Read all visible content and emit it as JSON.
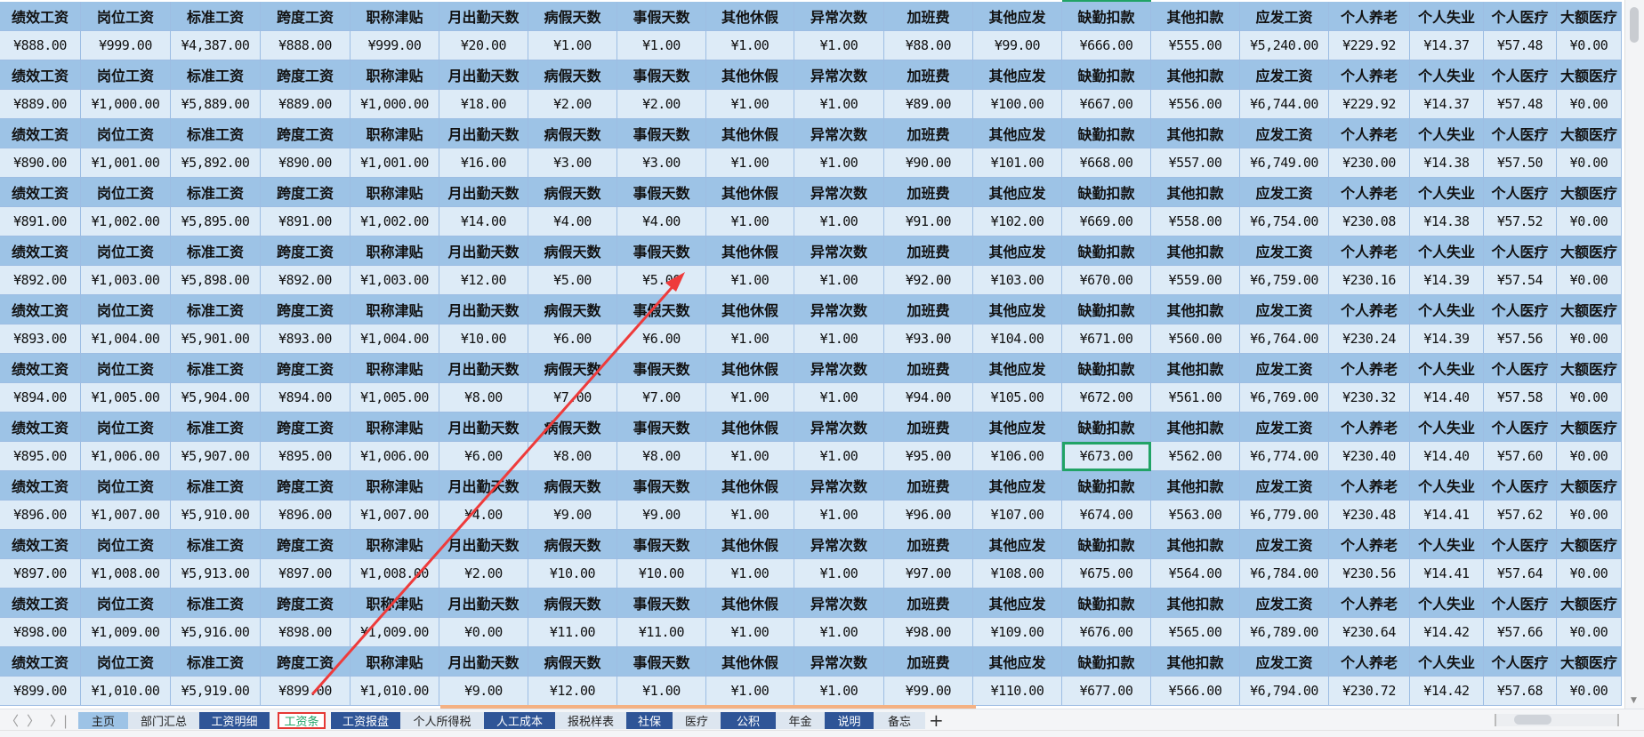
{
  "headers": [
    "绩效工资",
    "岗位工资",
    "标准工资",
    "跨度工资",
    "职称津贴",
    "月出勤天数",
    "病假天数",
    "事假天数",
    "其他休假",
    "异常次数",
    "加班费",
    "其他应发",
    "缺勤扣款",
    "其他扣款",
    "应发工资",
    "个人养老",
    "个人失业",
    "个人医疗",
    "大额医疗"
  ],
  "rows": [
    [
      "¥888.00",
      "¥999.00",
      "¥4,387.00",
      "¥888.00",
      "¥999.00",
      "¥20.00",
      "¥1.00",
      "¥1.00",
      "¥1.00",
      "¥1.00",
      "¥88.00",
      "¥99.00",
      "¥666.00",
      "¥555.00",
      "¥5,240.00",
      "¥229.92",
      "¥14.37",
      "¥57.48",
      "¥0.00"
    ],
    [
      "¥889.00",
      "¥1,000.00",
      "¥5,889.00",
      "¥889.00",
      "¥1,000.00",
      "¥18.00",
      "¥2.00",
      "¥2.00",
      "¥1.00",
      "¥1.00",
      "¥89.00",
      "¥100.00",
      "¥667.00",
      "¥556.00",
      "¥6,744.00",
      "¥229.92",
      "¥14.37",
      "¥57.48",
      "¥0.00"
    ],
    [
      "¥890.00",
      "¥1,001.00",
      "¥5,892.00",
      "¥890.00",
      "¥1,001.00",
      "¥16.00",
      "¥3.00",
      "¥3.00",
      "¥1.00",
      "¥1.00",
      "¥90.00",
      "¥101.00",
      "¥668.00",
      "¥557.00",
      "¥6,749.00",
      "¥230.00",
      "¥14.38",
      "¥57.50",
      "¥0.00"
    ],
    [
      "¥891.00",
      "¥1,002.00",
      "¥5,895.00",
      "¥891.00",
      "¥1,002.00",
      "¥14.00",
      "¥4.00",
      "¥4.00",
      "¥1.00",
      "¥1.00",
      "¥91.00",
      "¥102.00",
      "¥669.00",
      "¥558.00",
      "¥6,754.00",
      "¥230.08",
      "¥14.38",
      "¥57.52",
      "¥0.00"
    ],
    [
      "¥892.00",
      "¥1,003.00",
      "¥5,898.00",
      "¥892.00",
      "¥1,003.00",
      "¥12.00",
      "¥5.00",
      "¥5.00",
      "¥1.00",
      "¥1.00",
      "¥92.00",
      "¥103.00",
      "¥670.00",
      "¥559.00",
      "¥6,759.00",
      "¥230.16",
      "¥14.39",
      "¥57.54",
      "¥0.00"
    ],
    [
      "¥893.00",
      "¥1,004.00",
      "¥5,901.00",
      "¥893.00",
      "¥1,004.00",
      "¥10.00",
      "¥6.00",
      "¥6.00",
      "¥1.00",
      "¥1.00",
      "¥93.00",
      "¥104.00",
      "¥671.00",
      "¥560.00",
      "¥6,764.00",
      "¥230.24",
      "¥14.39",
      "¥57.56",
      "¥0.00"
    ],
    [
      "¥894.00",
      "¥1,005.00",
      "¥5,904.00",
      "¥894.00",
      "¥1,005.00",
      "¥8.00",
      "¥7.00",
      "¥7.00",
      "¥1.00",
      "¥1.00",
      "¥94.00",
      "¥105.00",
      "¥672.00",
      "¥561.00",
      "¥6,769.00",
      "¥230.32",
      "¥14.40",
      "¥57.58",
      "¥0.00"
    ],
    [
      "¥895.00",
      "¥1,006.00",
      "¥5,907.00",
      "¥895.00",
      "¥1,006.00",
      "¥6.00",
      "¥8.00",
      "¥8.00",
      "¥1.00",
      "¥1.00",
      "¥95.00",
      "¥106.00",
      "¥673.00",
      "¥562.00",
      "¥6,774.00",
      "¥230.40",
      "¥14.40",
      "¥57.60",
      "¥0.00"
    ],
    [
      "¥896.00",
      "¥1,007.00",
      "¥5,910.00",
      "¥896.00",
      "¥1,007.00",
      "¥4.00",
      "¥9.00",
      "¥9.00",
      "¥1.00",
      "¥1.00",
      "¥96.00",
      "¥107.00",
      "¥674.00",
      "¥563.00",
      "¥6,779.00",
      "¥230.48",
      "¥14.41",
      "¥57.62",
      "¥0.00"
    ],
    [
      "¥897.00",
      "¥1,008.00",
      "¥5,913.00",
      "¥897.00",
      "¥1,008.00",
      "¥2.00",
      "¥10.00",
      "¥10.00",
      "¥1.00",
      "¥1.00",
      "¥97.00",
      "¥108.00",
      "¥675.00",
      "¥564.00",
      "¥6,784.00",
      "¥230.56",
      "¥14.41",
      "¥57.64",
      "¥0.00"
    ],
    [
      "¥898.00",
      "¥1,009.00",
      "¥5,916.00",
      "¥898.00",
      "¥1,009.00",
      "¥0.00",
      "¥11.00",
      "¥11.00",
      "¥1.00",
      "¥1.00",
      "¥98.00",
      "¥109.00",
      "¥676.00",
      "¥565.00",
      "¥6,789.00",
      "¥230.64",
      "¥14.42",
      "¥57.66",
      "¥0.00"
    ],
    [
      "¥899.00",
      "¥1,010.00",
      "¥5,919.00",
      "¥899.00",
      "¥1,010.00",
      "¥9.00",
      "¥12.00",
      "¥1.00",
      "¥1.00",
      "¥1.00",
      "¥99.00",
      "¥110.00",
      "¥677.00",
      "¥566.00",
      "¥6,794.00",
      "¥230.72",
      "¥14.42",
      "¥57.68",
      "¥0.00"
    ]
  ],
  "selected_cell": {
    "row": 7,
    "col": 12
  },
  "sheet_tabs": [
    {
      "label": "主页",
      "style": "home"
    },
    {
      "label": "部门汇总",
      "style": "light"
    },
    {
      "label": "工资明细",
      "style": "dark"
    },
    {
      "label": "工资条",
      "style": "active"
    },
    {
      "label": "工资报盘",
      "style": "dark"
    },
    {
      "label": "个人所得税",
      "style": "light"
    },
    {
      "label": "人工成本",
      "style": "dark"
    },
    {
      "label": "报税样表",
      "style": "light"
    },
    {
      "label": "社保",
      "style": "dark"
    },
    {
      "label": "医疗",
      "style": "light"
    },
    {
      "label": "公积",
      "style": "dark"
    },
    {
      "label": "年金",
      "style": "light"
    },
    {
      "label": "说明",
      "style": "dark"
    },
    {
      "label": "备忘",
      "style": "light"
    }
  ],
  "nav": {
    "prev": "〈",
    "next": "〉",
    "last": "〉|",
    "add": "+"
  },
  "colors": {
    "header_bg": "#9dc3e6",
    "data_bg": "#ddebf7",
    "dark_tab": "#2f5597",
    "active_text": "#21a366",
    "highlight_border": "#e53935",
    "arrow": "#ee3b3b"
  }
}
